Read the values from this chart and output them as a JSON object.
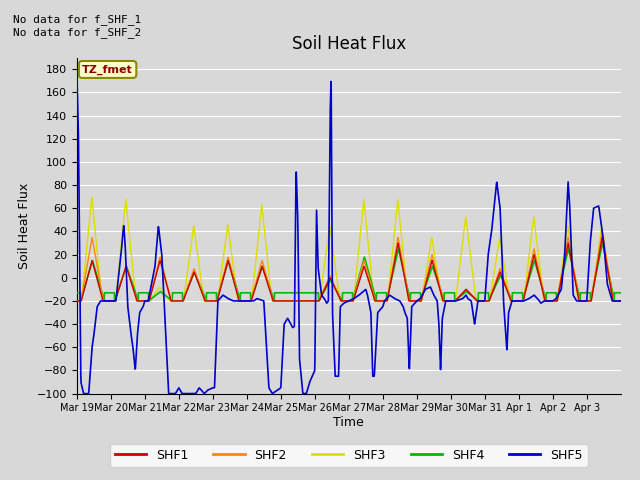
{
  "title": "Soil Heat Flux",
  "ylabel": "Soil Heat Flux",
  "xlabel": "Time",
  "annotation_top": "No data for f_SHF_1\nNo data for f_SHF_2",
  "box_label": "TZ_fmet",
  "ylim": [
    -100,
    190
  ],
  "background_color": "#d8d8d8",
  "plot_bg_color": "#d8d8d8",
  "grid_color": "#ffffff",
  "legend_entries": [
    "SHF1",
    "SHF2",
    "SHF3",
    "SHF4",
    "SHF5"
  ],
  "legend_colors": [
    "#cc0000",
    "#ff8800",
    "#dddd00",
    "#00bb00",
    "#0000cc"
  ],
  "x_tick_labels": [
    "Mar 19",
    "Mar 20",
    "Mar 21",
    "Mar 22",
    "Mar 23",
    "Mar 24",
    "Mar 25",
    "Mar 26",
    "Mar 27",
    "Mar 28",
    "Mar 29",
    "Mar 30",
    "Mar 31",
    "Apr 1",
    "Apr 2",
    "Apr 3"
  ],
  "num_days": 16,
  "yticks": [
    -100,
    -80,
    -60,
    -40,
    -20,
    0,
    20,
    40,
    60,
    80,
    100,
    120,
    140,
    160,
    180
  ]
}
